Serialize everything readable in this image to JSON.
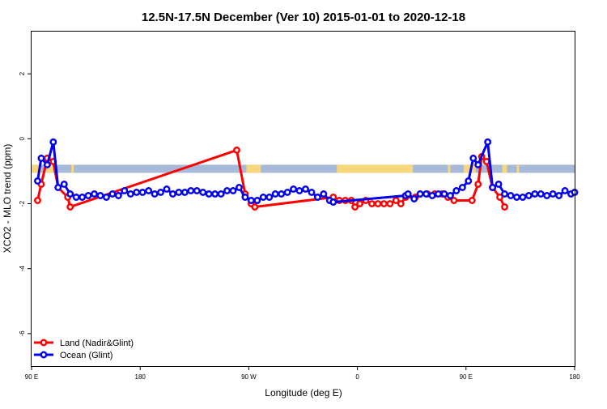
{
  "chart_data": {
    "type": "line",
    "title": "12.5N-17.5N December (Ver 10)   2015-01-01 to 2020-12-18",
    "xlabel": "Longitude (deg E)",
    "ylabel": "XCO2 - MLO trend (ppm)",
    "xlim": [
      0,
      450
    ],
    "ylim": [
      -7,
      3.3
    ],
    "x_ticks": [
      {
        "x": 0,
        "label": "90 E"
      },
      {
        "x": 90,
        "label": "180"
      },
      {
        "x": 180,
        "label": "90 W"
      },
      {
        "x": 270,
        "label": "0"
      },
      {
        "x": 360,
        "label": "90 E"
      },
      {
        "x": 450,
        "label": "180"
      }
    ],
    "y_ticks": [
      {
        "y": 2,
        "label": "2"
      },
      {
        "y": 0,
        "label": "0"
      },
      {
        "y": -2,
        "label": "-2"
      },
      {
        "y": -4,
        "label": "-4"
      },
      {
        "y": -6,
        "label": "-6"
      }
    ],
    "grid": false,
    "legend_position": "bottom-left",
    "land_sea_band": {
      "y_range": [
        -1.05,
        -0.8
      ],
      "sea_color": "#a6b9d8",
      "land_color": "#f6d77c",
      "land_segments": [
        [
          0,
          8
        ],
        [
          12,
          18
        ],
        [
          33,
          35
        ],
        [
          178,
          190
        ],
        [
          253,
          316
        ],
        [
          345,
          347
        ],
        [
          358,
          368
        ],
        [
          390,
          394
        ],
        [
          402,
          404
        ]
      ]
    },
    "series": [
      {
        "name": "Land (Nadir&Glint)",
        "color": "#ff0000",
        "points": [
          [
            5,
            -1.9
          ],
          [
            8,
            -1.4
          ],
          [
            13,
            -0.6
          ],
          [
            18,
            -0.7
          ],
          [
            22,
            -1.5
          ],
          [
            30,
            -1.8
          ],
          [
            32,
            -2.1
          ],
          [
            170,
            -0.35
          ],
          [
            177,
            -1.7
          ],
          [
            182,
            -2.0
          ],
          [
            185,
            -2.1
          ],
          [
            250,
            -1.8
          ],
          [
            255,
            -1.9
          ],
          [
            260,
            -1.9
          ],
          [
            265,
            -1.9
          ],
          [
            268,
            -2.1
          ],
          [
            272,
            -2.0
          ],
          [
            277,
            -1.9
          ],
          [
            282,
            -2.0
          ],
          [
            287,
            -2.0
          ],
          [
            292,
            -2.0
          ],
          [
            297,
            -2.0
          ],
          [
            302,
            -1.9
          ],
          [
            306,
            -2.0
          ],
          [
            310,
            -1.8
          ],
          [
            318,
            -1.8
          ],
          [
            322,
            -1.7
          ],
          [
            328,
            -1.7
          ],
          [
            334,
            -1.7
          ],
          [
            340,
            -1.7
          ],
          [
            345,
            -1.8
          ],
          [
            350,
            -1.9
          ],
          [
            365,
            -1.9
          ],
          [
            370,
            -1.4
          ],
          [
            373,
            -0.55
          ],
          [
            377,
            -0.7
          ],
          [
            382,
            -1.5
          ],
          [
            388,
            -1.8
          ],
          [
            392,
            -2.1
          ]
        ]
      },
      {
        "name": "Ocean (Glint)",
        "color": "#0000ee",
        "points": [
          [
            5,
            -1.3
          ],
          [
            8,
            -0.6
          ],
          [
            13,
            -0.8
          ],
          [
            18,
            -0.1
          ],
          [
            22,
            -1.5
          ],
          [
            27,
            -1.4
          ],
          [
            32,
            -1.7
          ],
          [
            37,
            -1.8
          ],
          [
            42,
            -1.8
          ],
          [
            47,
            -1.75
          ],
          [
            52,
            -1.7
          ],
          [
            57,
            -1.75
          ],
          [
            62,
            -1.8
          ],
          [
            67,
            -1.7
          ],
          [
            72,
            -1.75
          ],
          [
            77,
            -1.6
          ],
          [
            82,
            -1.7
          ],
          [
            87,
            -1.65
          ],
          [
            92,
            -1.65
          ],
          [
            97,
            -1.6
          ],
          [
            102,
            -1.7
          ],
          [
            107,
            -1.65
          ],
          [
            112,
            -1.55
          ],
          [
            117,
            -1.7
          ],
          [
            122,
            -1.65
          ],
          [
            127,
            -1.65
          ],
          [
            132,
            -1.6
          ],
          [
            137,
            -1.6
          ],
          [
            142,
            -1.65
          ],
          [
            147,
            -1.7
          ],
          [
            152,
            -1.7
          ],
          [
            157,
            -1.7
          ],
          [
            162,
            -1.6
          ],
          [
            167,
            -1.6
          ],
          [
            172,
            -1.5
          ],
          [
            177,
            -1.8
          ],
          [
            182,
            -1.9
          ],
          [
            187,
            -1.9
          ],
          [
            192,
            -1.8
          ],
          [
            197,
            -1.8
          ],
          [
            202,
            -1.7
          ],
          [
            207,
            -1.7
          ],
          [
            212,
            -1.65
          ],
          [
            217,
            -1.55
          ],
          [
            222,
            -1.6
          ],
          [
            227,
            -1.55
          ],
          [
            232,
            -1.65
          ],
          [
            237,
            -1.8
          ],
          [
            242,
            -1.7
          ],
          [
            247,
            -1.9
          ],
          [
            250,
            -1.95
          ],
          [
            310,
            -1.75
          ],
          [
            312,
            -1.7
          ],
          [
            317,
            -1.85
          ],
          [
            322,
            -1.7
          ],
          [
            327,
            -1.7
          ],
          [
            332,
            -1.75
          ],
          [
            337,
            -1.7
          ],
          [
            342,
            -1.7
          ],
          [
            347,
            -1.75
          ],
          [
            352,
            -1.6
          ],
          [
            357,
            -1.5
          ],
          [
            362,
            -1.3
          ],
          [
            366,
            -0.6
          ],
          [
            370,
            -0.8
          ],
          [
            378,
            -0.1
          ],
          [
            382,
            -1.5
          ],
          [
            387,
            -1.4
          ],
          [
            392,
            -1.7
          ],
          [
            397,
            -1.75
          ],
          [
            402,
            -1.8
          ],
          [
            407,
            -1.8
          ],
          [
            412,
            -1.75
          ],
          [
            417,
            -1.7
          ],
          [
            422,
            -1.7
          ],
          [
            427,
            -1.75
          ],
          [
            432,
            -1.7
          ],
          [
            437,
            -1.75
          ],
          [
            442,
            -1.6
          ],
          [
            447,
            -1.7
          ],
          [
            450,
            -1.65
          ]
        ]
      }
    ]
  }
}
